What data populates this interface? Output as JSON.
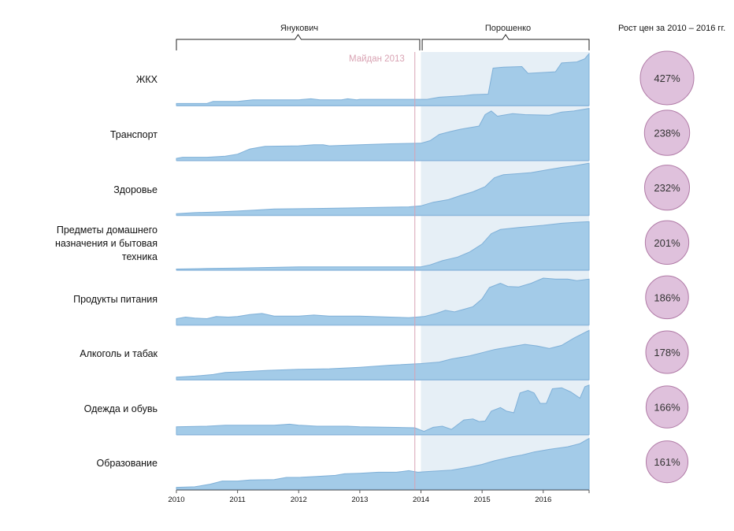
{
  "header": {
    "period1": "Янукович",
    "period2": "Порошенко",
    "growth_title": "Рост цен за 2010 – 2016 гг.",
    "event_label": "Майдан 2013"
  },
  "colors": {
    "area_fill": "#a3cbe8",
    "area_stroke": "#7fb0d8",
    "shade": "#e6eff6",
    "event_line": "#d8a2b4",
    "bubble_fill": "#dfc1dc",
    "bubble_stroke": "#b07aa6"
  },
  "chart_data": {
    "type": "area",
    "x_axis": {
      "range": [
        2010,
        2016.75
      ],
      "ticks": [
        "2010",
        "2011",
        "2012",
        "2013",
        "2014",
        "2015",
        "2016"
      ]
    },
    "event": {
      "label": "Майдан 2013",
      "x": 2013.9
    },
    "shaded_period": {
      "from": 2014.0,
      "to": 2016.75
    },
    "series": [
      {
        "name": "ЖКХ",
        "growth_label": "427%",
        "growth": 427,
        "points": [
          [
            2010,
            0.04
          ],
          [
            2010.5,
            0.04
          ],
          [
            2010.6,
            0.08
          ],
          [
            2011,
            0.08
          ],
          [
            2011.25,
            0.11
          ],
          [
            2012,
            0.11
          ],
          [
            2012.2,
            0.13
          ],
          [
            2012.35,
            0.11
          ],
          [
            2012.7,
            0.11
          ],
          [
            2012.8,
            0.13
          ],
          [
            2012.95,
            0.11
          ],
          [
            2013,
            0.12
          ],
          [
            2014.1,
            0.12
          ],
          [
            2014.3,
            0.16
          ],
          [
            2014.7,
            0.19
          ],
          [
            2014.85,
            0.21
          ],
          [
            2015.1,
            0.22
          ],
          [
            2015.18,
            0.72
          ],
          [
            2015.35,
            0.74
          ],
          [
            2015.65,
            0.75
          ],
          [
            2015.75,
            0.62
          ],
          [
            2016.2,
            0.65
          ],
          [
            2016.3,
            0.82
          ],
          [
            2016.55,
            0.84
          ],
          [
            2016.68,
            0.9
          ],
          [
            2016.75,
            1
          ]
        ]
      },
      {
        "name": "Транспорт",
        "growth_label": "238%",
        "growth": 238,
        "points": [
          [
            2010,
            0.04
          ],
          [
            2010.1,
            0.06
          ],
          [
            2010.5,
            0.06
          ],
          [
            2010.8,
            0.08
          ],
          [
            2011,
            0.12
          ],
          [
            2011.2,
            0.22
          ],
          [
            2011.45,
            0.27
          ],
          [
            2012,
            0.28
          ],
          [
            2012.25,
            0.3
          ],
          [
            2012.4,
            0.3
          ],
          [
            2012.5,
            0.28
          ],
          [
            2013,
            0.3
          ],
          [
            2013.5,
            0.32
          ],
          [
            2014,
            0.33
          ],
          [
            2014.15,
            0.38
          ],
          [
            2014.3,
            0.5
          ],
          [
            2014.5,
            0.56
          ],
          [
            2014.65,
            0.6
          ],
          [
            2014.8,
            0.63
          ],
          [
            2014.95,
            0.66
          ],
          [
            2015.05,
            0.88
          ],
          [
            2015.15,
            0.95
          ],
          [
            2015.25,
            0.85
          ],
          [
            2015.5,
            0.9
          ],
          [
            2015.7,
            0.88
          ],
          [
            2016.1,
            0.87
          ],
          [
            2016.3,
            0.93
          ],
          [
            2016.5,
            0.95
          ],
          [
            2016.75,
            1
          ]
        ]
      },
      {
        "name": "Здоровье",
        "growth_label": "232%",
        "growth": 232,
        "points": [
          [
            2010,
            0.03
          ],
          [
            2010.3,
            0.05
          ],
          [
            2010.6,
            0.06
          ],
          [
            2011,
            0.08
          ],
          [
            2011.3,
            0.1
          ],
          [
            2011.6,
            0.12
          ],
          [
            2012.3,
            0.13
          ],
          [
            2012.8,
            0.14
          ],
          [
            2013.3,
            0.15
          ],
          [
            2013.8,
            0.16
          ],
          [
            2014,
            0.18
          ],
          [
            2014.2,
            0.25
          ],
          [
            2014.45,
            0.3
          ],
          [
            2014.65,
            0.38
          ],
          [
            2014.85,
            0.45
          ],
          [
            2015.05,
            0.55
          ],
          [
            2015.2,
            0.72
          ],
          [
            2015.35,
            0.78
          ],
          [
            2015.6,
            0.8
          ],
          [
            2015.8,
            0.82
          ],
          [
            2016.1,
            0.88
          ],
          [
            2016.3,
            0.92
          ],
          [
            2016.5,
            0.95
          ],
          [
            2016.75,
            1
          ]
        ]
      },
      {
        "name": "Предметы домашнего назначения и бытовая техника",
        "growth_label": "201%",
        "growth": 201,
        "points": [
          [
            2010,
            0.02
          ],
          [
            2010.5,
            0.03
          ],
          [
            2011,
            0.04
          ],
          [
            2011.5,
            0.05
          ],
          [
            2012,
            0.06
          ],
          [
            2013,
            0.06
          ],
          [
            2014,
            0.06
          ],
          [
            2014.15,
            0.1
          ],
          [
            2014.35,
            0.18
          ],
          [
            2014.6,
            0.25
          ],
          [
            2014.8,
            0.35
          ],
          [
            2015,
            0.5
          ],
          [
            2015.15,
            0.7
          ],
          [
            2015.3,
            0.78
          ],
          [
            2015.6,
            0.82
          ],
          [
            2016,
            0.86
          ],
          [
            2016.3,
            0.9
          ],
          [
            2016.55,
            0.92
          ],
          [
            2016.75,
            0.93
          ]
        ]
      },
      {
        "name": "Продукты питания",
        "growth_label": "186%",
        "growth": 186,
        "points": [
          [
            2010,
            0.12
          ],
          [
            2010.15,
            0.15
          ],
          [
            2010.3,
            0.13
          ],
          [
            2010.5,
            0.12
          ],
          [
            2010.65,
            0.16
          ],
          [
            2010.85,
            0.15
          ],
          [
            2011,
            0.16
          ],
          [
            2011.2,
            0.2
          ],
          [
            2011.4,
            0.22
          ],
          [
            2011.6,
            0.17
          ],
          [
            2012,
            0.17
          ],
          [
            2012.25,
            0.19
          ],
          [
            2012.5,
            0.17
          ],
          [
            2013,
            0.17
          ],
          [
            2013.5,
            0.15
          ],
          [
            2013.8,
            0.14
          ],
          [
            2014.05,
            0.16
          ],
          [
            2014.25,
            0.22
          ],
          [
            2014.4,
            0.28
          ],
          [
            2014.55,
            0.25
          ],
          [
            2014.7,
            0.3
          ],
          [
            2014.85,
            0.35
          ],
          [
            2015,
            0.5
          ],
          [
            2015.12,
            0.72
          ],
          [
            2015.3,
            0.8
          ],
          [
            2015.42,
            0.74
          ],
          [
            2015.6,
            0.73
          ],
          [
            2015.8,
            0.8
          ],
          [
            2016.0,
            0.9
          ],
          [
            2016.2,
            0.88
          ],
          [
            2016.4,
            0.88
          ],
          [
            2016.55,
            0.85
          ],
          [
            2016.75,
            0.88
          ]
        ]
      },
      {
        "name": "Алкоголь и табак",
        "growth_label": "178%",
        "growth": 178,
        "points": [
          [
            2010,
            0.05
          ],
          [
            2010.3,
            0.07
          ],
          [
            2010.6,
            0.1
          ],
          [
            2010.8,
            0.14
          ],
          [
            2011,
            0.15
          ],
          [
            2011.5,
            0.18
          ],
          [
            2012,
            0.2
          ],
          [
            2012.5,
            0.21
          ],
          [
            2013,
            0.24
          ],
          [
            2013.5,
            0.28
          ],
          [
            2014,
            0.31
          ],
          [
            2014.3,
            0.34
          ],
          [
            2014.5,
            0.4
          ],
          [
            2014.8,
            0.46
          ],
          [
            2015,
            0.52
          ],
          [
            2015.2,
            0.58
          ],
          [
            2015.5,
            0.64
          ],
          [
            2015.7,
            0.68
          ],
          [
            2015.9,
            0.65
          ],
          [
            2016.1,
            0.6
          ],
          [
            2016.3,
            0.66
          ],
          [
            2016.5,
            0.8
          ],
          [
            2016.75,
            0.95
          ]
        ]
      },
      {
        "name": "Одежда и обувь",
        "growth_label": "166%",
        "growth": 166,
        "points": [
          [
            2010,
            0.15
          ],
          [
            2010.5,
            0.16
          ],
          [
            2010.8,
            0.18
          ],
          [
            2011,
            0.18
          ],
          [
            2011.6,
            0.18
          ],
          [
            2011.85,
            0.2
          ],
          [
            2012,
            0.18
          ],
          [
            2012.3,
            0.16
          ],
          [
            2012.8,
            0.16
          ],
          [
            2013,
            0.15
          ],
          [
            2013.5,
            0.14
          ],
          [
            2013.9,
            0.13
          ],
          [
            2014.05,
            0.06
          ],
          [
            2014.2,
            0.14
          ],
          [
            2014.35,
            0.16
          ],
          [
            2014.5,
            0.1
          ],
          [
            2014.7,
            0.28
          ],
          [
            2014.85,
            0.3
          ],
          [
            2014.95,
            0.25
          ],
          [
            2015.05,
            0.26
          ],
          [
            2015.15,
            0.45
          ],
          [
            2015.3,
            0.52
          ],
          [
            2015.4,
            0.45
          ],
          [
            2015.52,
            0.42
          ],
          [
            2015.62,
            0.8
          ],
          [
            2015.75,
            0.85
          ],
          [
            2015.85,
            0.8
          ],
          [
            2015.95,
            0.6
          ],
          [
            2016.05,
            0.6
          ],
          [
            2016.15,
            0.88
          ],
          [
            2016.3,
            0.9
          ],
          [
            2016.45,
            0.82
          ],
          [
            2016.6,
            0.7
          ],
          [
            2016.68,
            0.92
          ],
          [
            2016.75,
            0.95
          ]
        ]
      },
      {
        "name": "Образование",
        "growth_label": "161%",
        "growth": 161,
        "points": [
          [
            2010,
            0.04
          ],
          [
            2010.3,
            0.05
          ],
          [
            2010.55,
            0.1
          ],
          [
            2010.75,
            0.16
          ],
          [
            2011,
            0.16
          ],
          [
            2011.2,
            0.18
          ],
          [
            2011.6,
            0.19
          ],
          [
            2011.8,
            0.23
          ],
          [
            2012,
            0.23
          ],
          [
            2012.3,
            0.25
          ],
          [
            2012.6,
            0.27
          ],
          [
            2012.75,
            0.3
          ],
          [
            2013,
            0.31
          ],
          [
            2013.3,
            0.33
          ],
          [
            2013.6,
            0.33
          ],
          [
            2013.8,
            0.36
          ],
          [
            2013.95,
            0.33
          ],
          [
            2014.2,
            0.35
          ],
          [
            2014.5,
            0.37
          ],
          [
            2014.8,
            0.43
          ],
          [
            2015,
            0.48
          ],
          [
            2015.2,
            0.55
          ],
          [
            2015.5,
            0.63
          ],
          [
            2015.65,
            0.66
          ],
          [
            2015.85,
            0.72
          ],
          [
            2016.1,
            0.77
          ],
          [
            2016.4,
            0.82
          ],
          [
            2016.6,
            0.88
          ],
          [
            2016.75,
            0.98
          ]
        ]
      }
    ]
  }
}
